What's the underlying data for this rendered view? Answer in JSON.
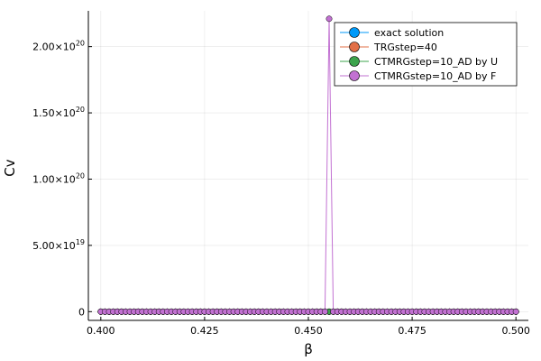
{
  "chart_data": {
    "type": "line",
    "title": "",
    "xlabel": "β",
    "ylabel": "Cv",
    "xlim": [
      0.397,
      0.503
    ],
    "ylim": [
      -6.6e+18,
      2.27e+20
    ],
    "grid": true,
    "legend_position": "top-right",
    "x_ticks": [
      {
        "value": 0.4,
        "label": "0.400"
      },
      {
        "value": 0.425,
        "label": "0.425"
      },
      {
        "value": 0.45,
        "label": "0.450"
      },
      {
        "value": 0.475,
        "label": "0.475"
      },
      {
        "value": 0.5,
        "label": "0.500"
      }
    ],
    "y_ticks": [
      {
        "value": 0,
        "mantissa": "0",
        "exponent": ""
      },
      {
        "value": 5e+19,
        "mantissa": "5.00×10",
        "exponent": "19"
      },
      {
        "value": 1e+20,
        "mantissa": "1.00×10",
        "exponent": "20"
      },
      {
        "value": 1.5e+20,
        "mantissa": "1.50×10",
        "exponent": "20"
      },
      {
        "value": 2e+20,
        "mantissa": "2.00×10",
        "exponent": "20"
      }
    ],
    "x": {
      "start": 0.4,
      "stop": 0.5,
      "step": 0.001
    },
    "series": [
      {
        "name": "exact solution",
        "color": "#009af9",
        "constant_value": 0
      },
      {
        "name": "TRGstep=40",
        "color": "#e26f46",
        "constant_value": 0
      },
      {
        "name": "CTMRGstep=10_AD by U",
        "color": "#3da44d",
        "constant_value": 0
      },
      {
        "name": "CTMRGstep=10_AD by F",
        "color": "#c271d2",
        "constant_value": 0,
        "spikes": [
          {
            "x": 0.455,
            "y": 2.21e+20
          }
        ]
      }
    ]
  }
}
